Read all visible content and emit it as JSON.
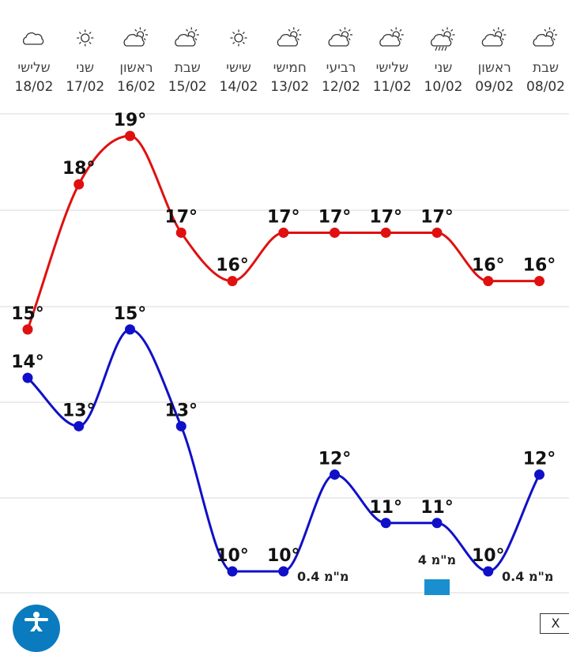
{
  "chart_data": {
    "type": "line",
    "days": [
      {
        "weekday": "שלישי",
        "date": "18/02",
        "icon": "cloud-icon"
      },
      {
        "weekday": "שני",
        "date": "17/02",
        "icon": "sun-icon"
      },
      {
        "weekday": "ראשון",
        "date": "16/02",
        "icon": "partly-cloudy-icon"
      },
      {
        "weekday": "שבת",
        "date": "15/02",
        "icon": "partly-cloudy-icon"
      },
      {
        "weekday": "שישי",
        "date": "14/02",
        "icon": "sun-icon"
      },
      {
        "weekday": "חמישי",
        "date": "13/02",
        "icon": "partly-cloudy-icon"
      },
      {
        "weekday": "רביעי",
        "date": "12/02",
        "icon": "partly-cloudy-icon"
      },
      {
        "weekday": "שלישי",
        "date": "11/02",
        "icon": "partly-cloudy-icon"
      },
      {
        "weekday": "שני",
        "date": "10/02",
        "icon": "rain-cloud-icon"
      },
      {
        "weekday": "ראשון",
        "date": "09/02",
        "icon": "partly-cloudy-icon"
      },
      {
        "weekday": "שבת",
        "date": "08/02",
        "icon": "partly-cloudy-icon"
      }
    ],
    "series": [
      {
        "values": [
          15,
          18,
          19,
          17,
          16,
          17,
          17,
          17,
          17,
          16,
          16
        ],
        "color": "#e01010"
      },
      {
        "values": [
          14,
          13,
          15,
          13,
          10,
          10,
          12,
          11,
          11,
          10,
          12
        ],
        "color": "#1010c8"
      }
    ],
    "unit": "°",
    "precipitation": [
      {
        "day_index": 5,
        "label": "0.4 מ\"מ"
      },
      {
        "day_index": 8,
        "label": "4 מ\"מ",
        "value": 4
      },
      {
        "day_index": 9,
        "label": "0.4 מ\"מ"
      }
    ],
    "precip_color": "#1a8fd0",
    "ylim": [
      10,
      19
    ],
    "grid": true
  },
  "close_label": "X"
}
